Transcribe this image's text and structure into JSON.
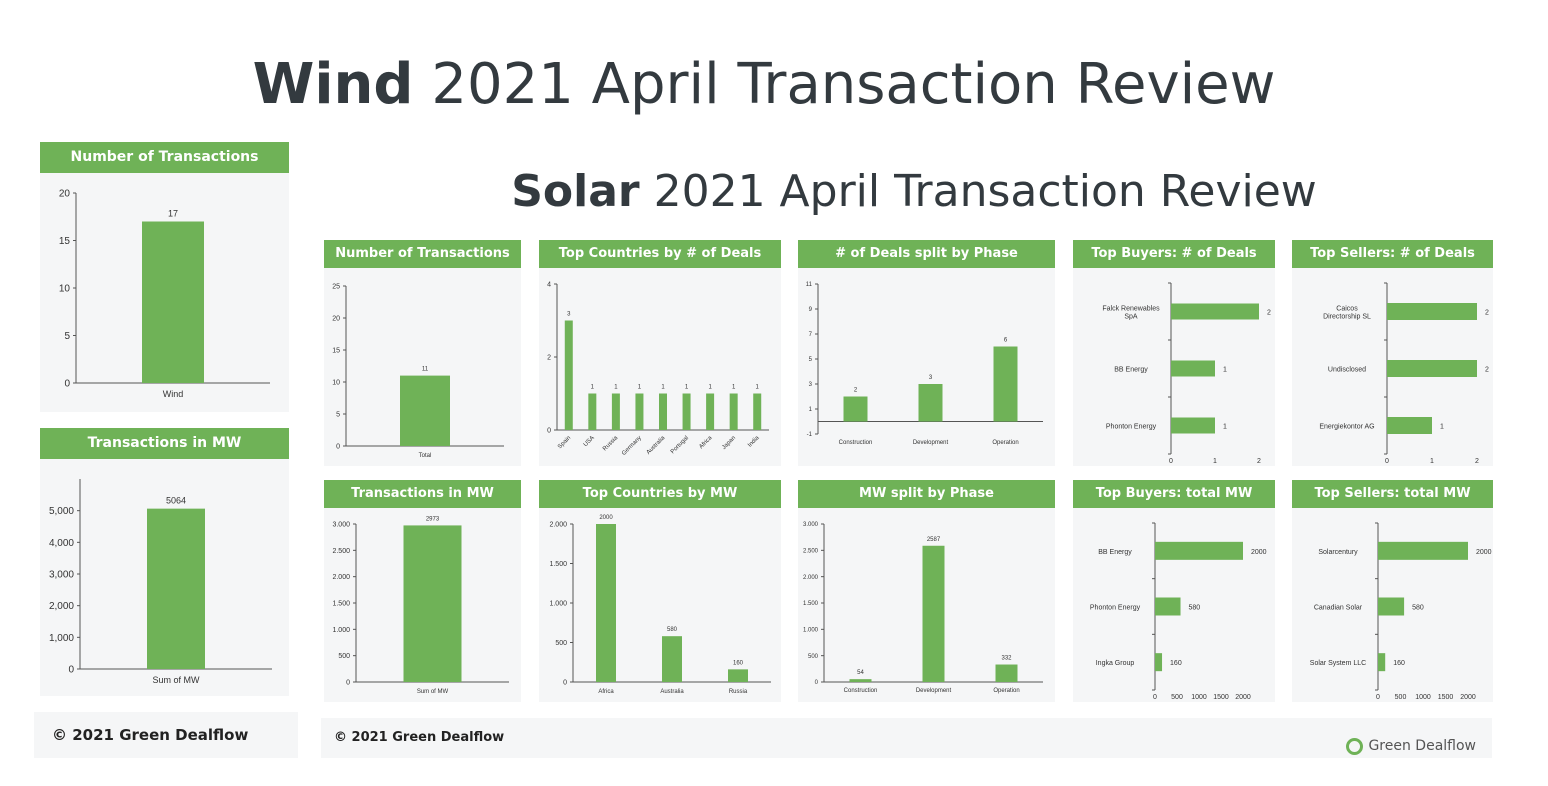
{
  "titles": {
    "wind_bold": "Wind",
    "wind_rest": "2021 April Transaction Review",
    "solar_bold": "Solar",
    "solar_rest": "2021 April Transaction Review"
  },
  "footer": {
    "wind": "© 2021 Green Dealflow",
    "solar": "© 2021 Green Dealflow",
    "logo": "Green Dealflow"
  },
  "colors": {
    "accent": "#6fb257",
    "panel": "#f5f6f7",
    "title": "#333a3f"
  },
  "chart_data": [
    {
      "id": "wind-transactions",
      "type": "bar",
      "title": "Number of Transactions",
      "categories": [
        "Wind"
      ],
      "values": [
        17
      ],
      "ylim": [
        0,
        20
      ],
      "ticks": [
        0,
        5,
        10,
        15,
        20
      ],
      "tick_labels": [
        "0",
        "5",
        "10",
        "15",
        "20"
      ]
    },
    {
      "id": "wind-mw",
      "type": "bar",
      "title": "Transactions in MW",
      "categories": [
        "Sum of MW"
      ],
      "values": [
        5064
      ],
      "ylim": [
        0,
        6000
      ],
      "ticks": [
        0,
        1000,
        2000,
        3000,
        4000,
        5000
      ],
      "tick_labels": [
        "0",
        "1,000",
        "2,000",
        "3,000",
        "4,000",
        "5,000"
      ]
    },
    {
      "id": "solar-transactions",
      "type": "bar",
      "title": "Number of Transactions",
      "categories": [
        "Total"
      ],
      "values": [
        11
      ],
      "ylim": [
        0,
        25
      ],
      "ticks": [
        0,
        5,
        10,
        15,
        20,
        25
      ],
      "tick_labels": [
        "0",
        "5",
        "10",
        "15",
        "20",
        "25"
      ]
    },
    {
      "id": "solar-countries-deals",
      "type": "bar",
      "title": "Top Countries by # of Deals",
      "categories": [
        "Spain",
        "USA",
        "Russia",
        "Germany",
        "Australia",
        "Portugal",
        "Africa",
        "Japan",
        "India"
      ],
      "values": [
        3,
        1,
        1,
        1,
        1,
        1,
        1,
        1,
        1
      ],
      "ylim": [
        0,
        4
      ],
      "ticks": [
        0,
        2,
        4
      ],
      "tick_labels": [
        "0",
        "2",
        "4"
      ],
      "rotate_labels": true
    },
    {
      "id": "solar-phase-deals",
      "type": "bar",
      "title": "# of Deals split by Phase",
      "categories": [
        "Construction",
        "Development",
        "Operation"
      ],
      "values": [
        2,
        3,
        6
      ],
      "ylim": [
        -1,
        11
      ],
      "ticks": [
        -1,
        1,
        3,
        5,
        7,
        9,
        11
      ],
      "tick_labels": [
        "-1",
        "1",
        "3",
        "5",
        "7",
        "9",
        "11"
      ]
    },
    {
      "id": "solar-buyers-deals",
      "type": "hbar",
      "title": "Top Buyers: # of Deals",
      "categories": [
        "Falck Renewables SpA",
        "BB Energy",
        "Phonton Energy"
      ],
      "values": [
        2,
        1,
        1
      ],
      "xlim": [
        0,
        2
      ],
      "ticks": [
        0,
        1,
        2
      ],
      "tick_labels": [
        "0",
        "1",
        "2"
      ]
    },
    {
      "id": "solar-sellers-deals",
      "type": "hbar",
      "title": "Top Sellers: # of Deals",
      "categories": [
        "Caicos Directorship SL",
        "Undisclosed",
        "Energiekontor AG"
      ],
      "values": [
        2,
        2,
        1
      ],
      "xlim": [
        0,
        2
      ],
      "ticks": [
        0,
        1,
        2
      ],
      "tick_labels": [
        "0",
        "1",
        "2"
      ]
    },
    {
      "id": "solar-mw",
      "type": "bar",
      "title": "Transactions in MW",
      "categories": [
        "Sum of MW"
      ],
      "values": [
        2973
      ],
      "ylim": [
        0,
        3000
      ],
      "ticks": [
        0,
        500,
        1000,
        1500,
        2000,
        2500,
        3000
      ],
      "tick_labels": [
        "0",
        "500",
        "1.000",
        "1.500",
        "2.000",
        "2.500",
        "3.000"
      ]
    },
    {
      "id": "solar-countries-mw",
      "type": "bar",
      "title": "Top Countries by MW",
      "categories": [
        "Africa",
        "Australia",
        "Russia"
      ],
      "values": [
        2000,
        580,
        160
      ],
      "ylim": [
        0,
        2000
      ],
      "ticks": [
        0,
        500,
        1000,
        1500,
        2000
      ],
      "tick_labels": [
        "0",
        "500",
        "1.000",
        "1.500",
        "2.000"
      ]
    },
    {
      "id": "solar-phase-mw",
      "type": "bar",
      "title": "MW split by Phase",
      "categories": [
        "Construction",
        "Development",
        "Operation"
      ],
      "values": [
        54,
        2587,
        332
      ],
      "ylim": [
        0,
        3000
      ],
      "ticks": [
        0,
        500,
        1000,
        1500,
        2000,
        2500,
        3000
      ],
      "tick_labels": [
        "0",
        "500",
        "1.000",
        "1.500",
        "2.000",
        "2.500",
        "3.000"
      ]
    },
    {
      "id": "solar-buyers-mw",
      "type": "hbar",
      "title": "Top Buyers: total MW",
      "categories": [
        "BB Energy",
        "Phonton Energy",
        "Ingka Group"
      ],
      "values": [
        2000,
        580,
        160
      ],
      "xlim": [
        0,
        2000
      ],
      "ticks": [
        0,
        500,
        1000,
        1500,
        2000
      ],
      "tick_labels": [
        "0",
        "500",
        "1000",
        "1500",
        "2000"
      ]
    },
    {
      "id": "solar-sellers-mw",
      "type": "hbar",
      "title": "Top Sellers: total MW",
      "categories": [
        "Solarcentury",
        "Canadian Solar",
        "Solar System LLC"
      ],
      "values": [
        2000,
        580,
        160
      ],
      "xlim": [
        0,
        2000
      ],
      "ticks": [
        0,
        500,
        1000,
        1500,
        2000
      ],
      "tick_labels": [
        "0",
        "500",
        "1000",
        "1500",
        "2000"
      ]
    }
  ]
}
